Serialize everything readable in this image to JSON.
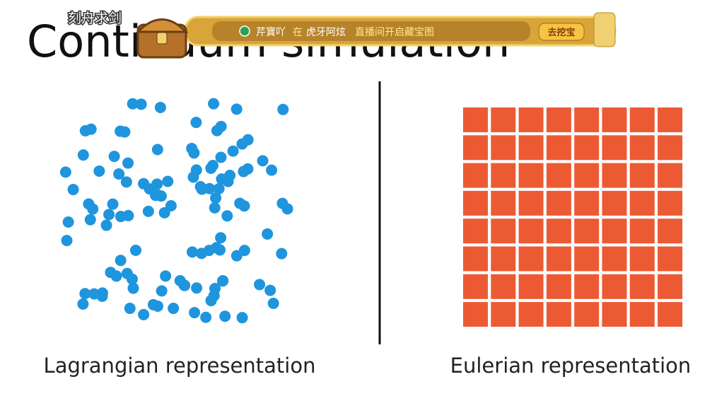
{
  "slide": {
    "title": "Continuum simulation",
    "left_caption": "Lagrangian representation",
    "right_caption": "Eulerian representation"
  },
  "overlay": {
    "corner_text": "刻舟求剑",
    "user": "芹寶吖",
    "at": "在",
    "streamer": "虎牙阿炫",
    "message": "直播间开启藏宝图",
    "button": "去挖宝"
  }
}
